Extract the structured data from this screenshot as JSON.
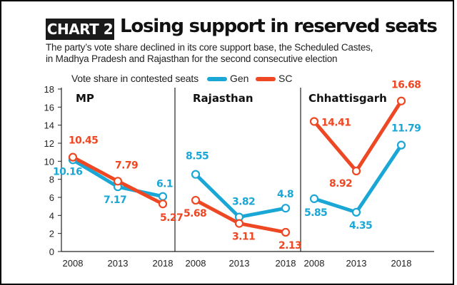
{
  "header": {
    "tag": "CHART 2",
    "title": "Losing support in reserved seats",
    "subtitle_lines": [
      "The party’s vote share declined in its core support base, the Scheduled Castes,",
      "in Madhya Pradesh and Rajasthan for the second consecutive election"
    ]
  },
  "legend": {
    "label": "Vote share in contested seats",
    "gen": "Gen",
    "sc": "SC"
  },
  "colors": {
    "gen": "#1aa7d6",
    "sc": "#ee4723"
  },
  "chart_data": {
    "type": "line",
    "ylim": [
      0,
      18
    ],
    "yticks": [
      "0",
      "2",
      "4",
      "6",
      "8",
      "10",
      "12",
      "14",
      "16",
      "18"
    ],
    "grid": false,
    "legend_position": "top",
    "panels": [
      {
        "name": "MP",
        "x": [
          "2008",
          "2013",
          "2018"
        ],
        "series": [
          {
            "name": "Gen",
            "values": [
              10.16,
              7.17,
              6.1
            ],
            "labels": [
              "10.16",
              "7.17",
              "6.1"
            ]
          },
          {
            "name": "SC",
            "values": [
              10.45,
              7.79,
              5.27
            ],
            "labels": [
              "10.45",
              "7.79",
              "5.27"
            ]
          }
        ]
      },
      {
        "name": "Rajasthan",
        "x": [
          "2008",
          "2013",
          "2018"
        ],
        "series": [
          {
            "name": "Gen",
            "values": [
              8.55,
              3.82,
              4.8
            ],
            "labels": [
              "8.55",
              "3.82",
              "4.8"
            ]
          },
          {
            "name": "SC",
            "values": [
              5.68,
              3.11,
              2.13
            ],
            "labels": [
              "5.68",
              "3.11",
              "2.13"
            ]
          }
        ]
      },
      {
        "name": "Chhattisgarh",
        "x": [
          "2008",
          "2013",
          "2018"
        ],
        "series": [
          {
            "name": "Gen",
            "values": [
              5.85,
              4.35,
              11.79
            ],
            "labels": [
              "5.85",
              "4.35",
              "11.79"
            ]
          },
          {
            "name": "SC",
            "values": [
              14.41,
              8.92,
              16.68
            ],
            "labels": [
              "14.41",
              "8.92",
              "16.68"
            ]
          }
        ]
      }
    ]
  }
}
